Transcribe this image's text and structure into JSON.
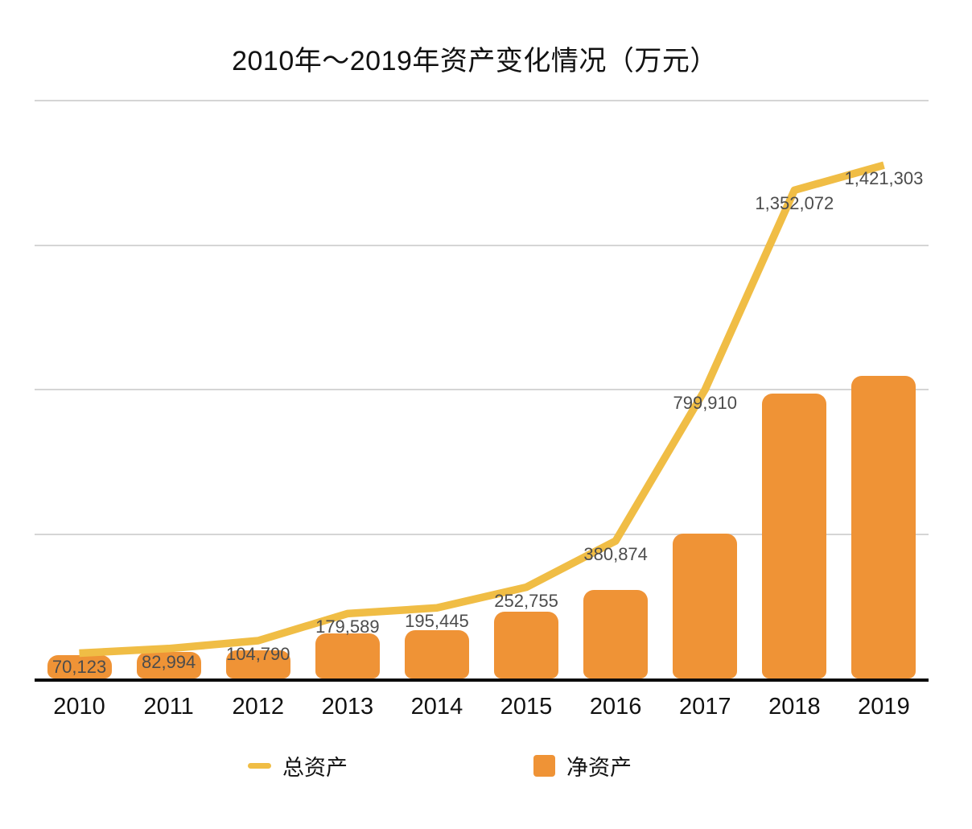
{
  "chart_data": {
    "type": "combo: line + bar",
    "title": "2010年～2019年资产变化情况（万元）",
    "categories": [
      "2010",
      "2011",
      "2012",
      "2013",
      "2014",
      "2015",
      "2016",
      "2017",
      "2018",
      "2019"
    ],
    "series": [
      {
        "name": "总资产",
        "type": "line",
        "color": "#F0BD45",
        "values": [
          70123,
          82994,
          104790,
          179589,
          195445,
          252755,
          380874,
          799910,
          1352072,
          1421303
        ],
        "labels_shown": true
      },
      {
        "name": "净资产",
        "type": "bar",
        "color": "#EF9336",
        "values": [
          64000,
          73000,
          77000,
          125000,
          133000,
          184000,
          246000,
          402000,
          789000,
          837000
        ],
        "labels_shown": false,
        "note": "bars unlabeled in chart; values estimated from gridlines"
      }
    ],
    "ylim": [
      0,
      1600000
    ],
    "gridline_values": [
      400000,
      800000,
      1200000,
      1600000
    ],
    "grid": true,
    "axis_color": "#0b0b0b",
    "gridline_color": "#d5d5d5",
    "label_color": "#4c4c4c",
    "legend_position": "bottom",
    "yaxis_tick_labels_shown": false
  },
  "legend": {
    "items": [
      {
        "label": "总资产",
        "swatch": "line-dash"
      },
      {
        "label": "净资产",
        "swatch": "square"
      }
    ]
  }
}
